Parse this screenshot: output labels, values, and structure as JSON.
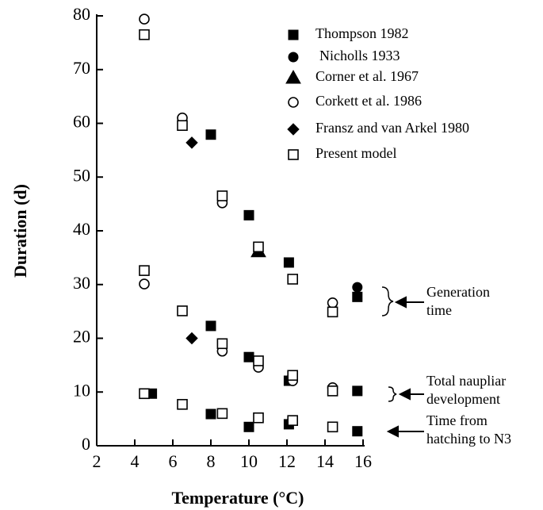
{
  "chart_data": {
    "type": "scatter",
    "xlabel": "Temperature (°C)",
    "ylabel": "Duration (d)",
    "xlim": [
      2,
      16
    ],
    "ylim": [
      0,
      80
    ],
    "xticks": [
      2,
      4,
      6,
      8,
      10,
      12,
      14,
      16
    ],
    "yticks": [
      0,
      10,
      20,
      30,
      40,
      50,
      60,
      70,
      80
    ],
    "series": [
      {
        "name": "Thompson 1982",
        "marker": "square-filled",
        "color": "#000",
        "x": [
          8,
          10,
          12.1,
          15.7,
          8,
          10,
          12.1,
          15.7,
          4.9,
          8,
          10,
          12.1,
          15.7
        ],
        "values": [
          57.9,
          42.9,
          34.1,
          27.7,
          22.3,
          16.5,
          12.1,
          10.2,
          9.7,
          5.9,
          3.5,
          4,
          2.7
        ]
      },
      {
        "name": "Nicholls 1933",
        "marker": "circle-filled",
        "color": "#000",
        "x": [
          15.7
        ],
        "values": [
          29.5
        ]
      },
      {
        "name": "Corner et al. 1967",
        "marker": "triangle-filled",
        "color": "#000",
        "x": [
          10.5
        ],
        "values": [
          36.2
        ]
      },
      {
        "name": "Corkett et al. 1986",
        "marker": "circle-open",
        "color": "#000",
        "x": [
          4.5,
          6.5,
          8.6,
          4.5,
          8.6,
          10.5,
          12.3,
          14.4,
          14.4
        ],
        "values": [
          79.4,
          61,
          45.2,
          30.1,
          17.6,
          14.6,
          12.1,
          26.6,
          10.8
        ]
      },
      {
        "name": "Fransz  and van Arkel 1980",
        "marker": "diamond-filled",
        "color": "#000",
        "x": [
          7,
          7
        ],
        "values": [
          56.4,
          20
        ]
      },
      {
        "name": "Present model",
        "marker": "square-open",
        "color": "#000",
        "x": [
          4.5,
          6.5,
          8.6,
          10.5,
          12.3,
          14.4,
          4.5,
          6.5,
          8.6,
          10.5,
          12.3,
          14.4,
          4.5,
          6.5,
          8.6,
          10.5,
          12.3,
          14.4
        ],
        "values": [
          76.5,
          59.6,
          46.5,
          37,
          31,
          24.9,
          32.6,
          25.1,
          19,
          15.8,
          13.1,
          10.2,
          9.7,
          7.7,
          6,
          5.2,
          4.7,
          3.5
        ]
      }
    ],
    "annotations": [
      {
        "lines": [
          "Generation",
          "time"
        ]
      },
      {
        "lines": [
          "Total naupliar",
          "development"
        ]
      },
      {
        "lines": [
          "Time from",
          "hatching to N3"
        ]
      }
    ]
  }
}
